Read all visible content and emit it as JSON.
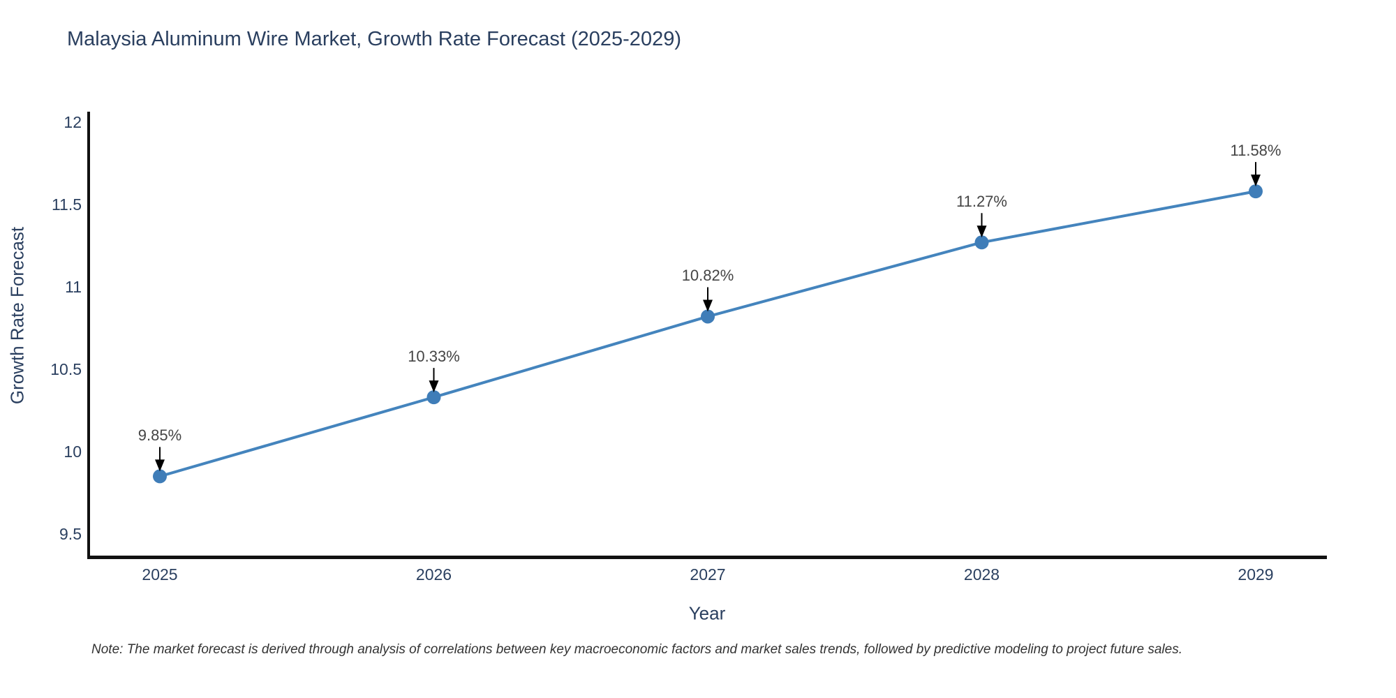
{
  "chart_data": {
    "type": "line",
    "title": "Malaysia Aluminum Wire Market, Growth Rate Forecast (2025-2029)",
    "xlabel": "Year",
    "ylabel": "Growth Rate Forecast",
    "footnote": "Note: The market forecast is derived through analysis of correlations between key macroeconomic factors and market sales trends, followed by predictive modeling to project future sales.",
    "categories": [
      "2025",
      "2026",
      "2027",
      "2028",
      "2029"
    ],
    "values": [
      9.85,
      10.33,
      10.82,
      11.27,
      11.58
    ],
    "point_labels": [
      "9.85%",
      "10.33%",
      "10.82%",
      "11.27%",
      "11.58%"
    ],
    "yticks": [
      12,
      11.5,
      11,
      10.5,
      10,
      9.5
    ],
    "ylim": [
      9.36,
      12.06
    ],
    "grid": false,
    "legend_position": "none",
    "annotations": "each data point labeled with percentage and downward black arrow",
    "colors": {
      "line": "#4484bd",
      "marker": "#3f7db8",
      "axis": "#111111",
      "tick_text": "#2a3f5f",
      "title_text": "#2a3f5f",
      "annotation_text": "#444444",
      "note_text": "#333333",
      "arrow": "#000000",
      "background": "#ffffff"
    }
  }
}
